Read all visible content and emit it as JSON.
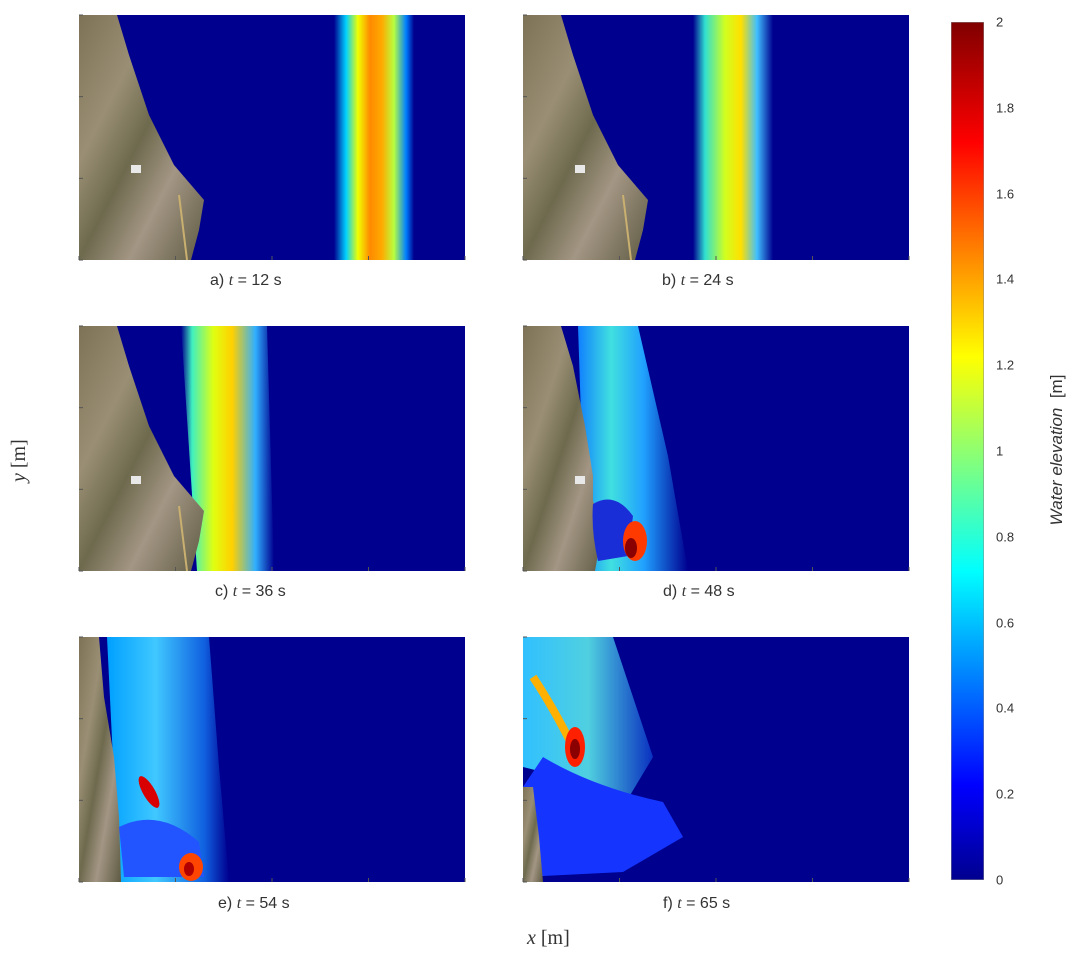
{
  "figure": {
    "xlabel_var": "x",
    "xlabel_unit": "[m]",
    "ylabel_var": "y",
    "ylabel_unit": "[m]",
    "colorbar": {
      "label_main": "Water elevation",
      "label_unit": "[m]",
      "min": 0,
      "max": 2,
      "ticks": [
        "2",
        "1.8",
        "1.6",
        "1.4",
        "1.2",
        "1",
        "0.8",
        "0.6",
        "0.4",
        "0.2",
        "0"
      ],
      "colormap": "jet"
    },
    "panels": [
      {
        "id": "a",
        "prefix": "a)",
        "tvar": "t",
        "eq": "=  12 s"
      },
      {
        "id": "b",
        "prefix": "b)",
        "tvar": "t",
        "eq": "= 24 s"
      },
      {
        "id": "c",
        "prefix": "c)",
        "tvar": "t",
        "eq": "= 36 s"
      },
      {
        "id": "d",
        "prefix": "d)",
        "tvar": "t",
        "eq": "= 48 s"
      },
      {
        "id": "e",
        "prefix": "e)",
        "tvar": "t",
        "eq": "= 54 s"
      },
      {
        "id": "f",
        "prefix": "f)",
        "tvar": "t",
        "eq": "=  65 s"
      }
    ]
  },
  "chart_data": {
    "type": "heatmap",
    "title": "",
    "xlabel": "x [m]",
    "ylabel": "y [m]",
    "colorbar_label": "Water elevation [m]",
    "colorbar_range": [
      0,
      2
    ],
    "times_s": [
      12,
      24,
      36,
      48,
      54,
      65
    ],
    "series": [
      {
        "time_s": 12,
        "description_value": "wave front peak about 1.5 m offshore"
      },
      {
        "time_s": 24,
        "description_value": "wave front peak about 1.3 m"
      },
      {
        "time_s": 36,
        "description_value": "wave front peak about 1.2 m near coast"
      },
      {
        "time_s": 48,
        "description_value": "inundation peaks about 2 m near shore"
      },
      {
        "time_s": 54,
        "description_value": "inundation peaks about 2 m on land"
      },
      {
        "time_s": 65,
        "description_value": "inundation peak about 2 m on land"
      }
    ]
  }
}
